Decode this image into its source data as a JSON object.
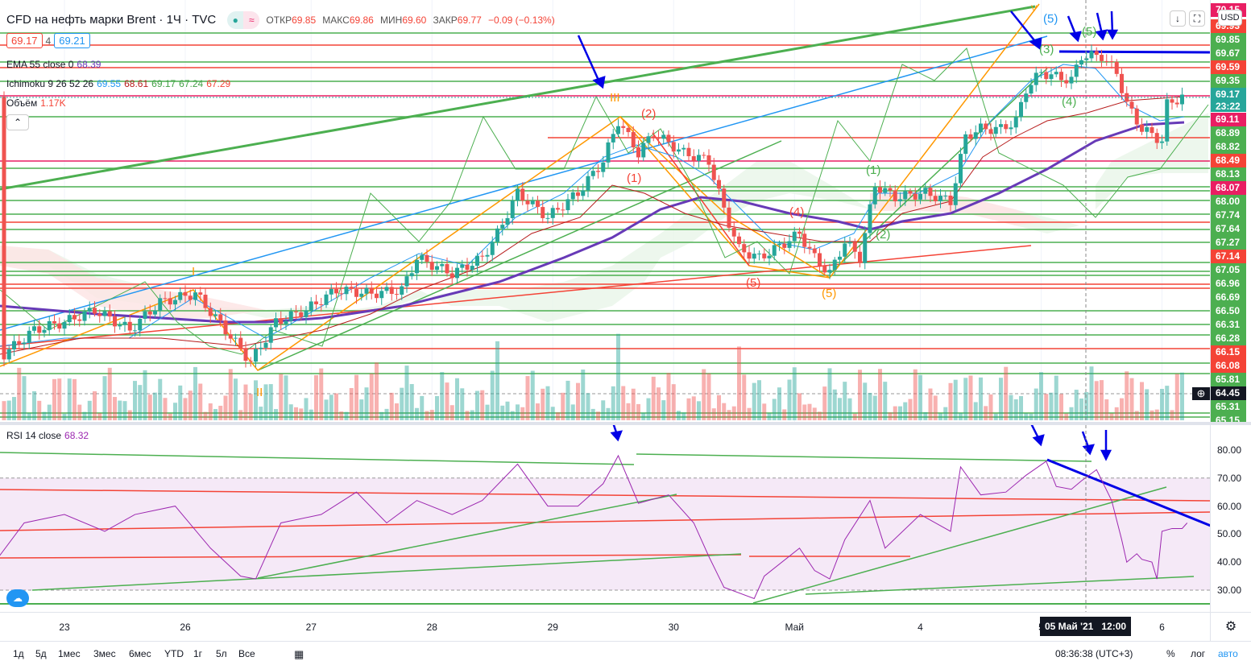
{
  "header": {
    "symbol": "CFD на нефть марки Brent · 1Ч · TVC",
    "open_label": "ОТКР",
    "open": "69.85",
    "high_label": "МАКС",
    "high": "69.86",
    "low_label": "МИН",
    "low": "69.60",
    "close_label": "ЗАКР",
    "close": "69.77",
    "change": "−0.09 (−0.13%)"
  },
  "trade": {
    "sell": "69.17",
    "spread": "4",
    "buy": "69.21"
  },
  "indicators": {
    "ema_label": "EMA 55 close 0",
    "ema_value": "68.39",
    "ichimoku_label": "Ichimoku 9 26 52 26",
    "ichi_values": [
      "69.55",
      "68.61",
      "69.17",
      "67.24",
      "67.29"
    ],
    "volume_label": "Объём",
    "volume_value": "1.17K",
    "rsi_label": "RSI 14 close",
    "rsi_value": "68.32"
  },
  "currency": "USD",
  "price_axis": [
    {
      "v": "70.15",
      "c": "#e91e63"
    },
    {
      "v": "69.93",
      "c": "#f44336"
    },
    {
      "v": "69.85",
      "c": "#4caf50"
    },
    {
      "v": "69.67",
      "c": "#4caf50"
    },
    {
      "v": "69.59",
      "c": "#f44336"
    },
    {
      "v": "69.35",
      "c": "#4caf50"
    },
    {
      "v": "69.17",
      "c": "#26a69a",
      "sub": "23:22"
    },
    {
      "v": "69.11",
      "c": "#e91e63"
    },
    {
      "v": "68.89",
      "c": "#4caf50"
    },
    {
      "v": "68.82",
      "c": "#4caf50"
    },
    {
      "v": "68.49",
      "c": "#f44336"
    },
    {
      "v": "68.13",
      "c": "#4caf50"
    },
    {
      "v": "68.07",
      "c": "#e91e63"
    },
    {
      "v": "68.00",
      "c": "#4caf50"
    },
    {
      "v": "67.74",
      "c": "#4caf50"
    },
    {
      "v": "67.64",
      "c": "#4caf50"
    },
    {
      "v": "67.27",
      "c": "#4caf50"
    },
    {
      "v": "67.14",
      "c": "#f44336"
    },
    {
      "v": "67.05",
      "c": "#4caf50"
    },
    {
      "v": "66.96",
      "c": "#4caf50"
    },
    {
      "v": "66.69",
      "c": "#4caf50"
    },
    {
      "v": "66.50",
      "c": "#4caf50"
    },
    {
      "v": "66.31",
      "c": "#4caf50"
    },
    {
      "v": "66.28",
      "c": "#4caf50"
    },
    {
      "v": "66.15",
      "c": "#f44336"
    },
    {
      "v": "66.08",
      "c": "#f44336"
    },
    {
      "v": "65.81",
      "c": "#4caf50"
    },
    {
      "v": "64.45",
      "c": "#131722"
    },
    {
      "v": "65.31",
      "c": "#4caf50"
    },
    {
      "v": "65.15",
      "c": "#4caf50"
    }
  ],
  "rsi_axis": [
    "80.00",
    "70.00",
    "60.00",
    "50.00",
    "40.00",
    "30.00"
  ],
  "time_axis": [
    {
      "t": "23",
      "h": 0
    },
    {
      "t": "26",
      "h": 24
    },
    {
      "t": "27",
      "h": 49
    },
    {
      "t": "28",
      "h": 73
    },
    {
      "t": "29",
      "h": 97
    },
    {
      "t": "30",
      "h": 121
    },
    {
      "t": "Май",
      "h": 145
    },
    {
      "t": "4",
      "h": 170
    },
    {
      "t": "5",
      "h": 194
    },
    {
      "t": "6",
      "h": 218
    }
  ],
  "crosshair_label": "05 Май '21   12:00",
  "wave_labels": {
    "III": "III",
    "w2": "(2)",
    "w1": "(1)",
    "I": "I",
    "II": "II",
    "r4": "(4)",
    "r5a": "(5)",
    "r5b": "(5)",
    "g1": "(1)",
    "g2": "(2)",
    "g3": "(3)",
    "g4": "(4)",
    "g5": "(5)",
    "b5": "(5)",
    "V": "V"
  },
  "bottom": {
    "ranges": [
      "1д",
      "5д",
      "1мес",
      "3мес",
      "6мес",
      "YTD",
      "1г",
      "5л",
      "Все"
    ],
    "clock": "08:36:38 (UTC+3)",
    "pct": "%",
    "log": "лог",
    "auto": "авто"
  },
  "chart_data": {
    "type": "candlestick",
    "x_unit": "hours since 23 Apr 00:00",
    "price_path": [
      [
        -12,
        66.22
      ],
      [
        -6,
        66.5
      ],
      [
        0,
        66.59
      ],
      [
        6,
        66.73
      ],
      [
        13,
        66.5
      ],
      [
        19,
        66.82
      ],
      [
        26,
        66.92
      ],
      [
        32,
        66.5
      ],
      [
        37,
        66.13
      ],
      [
        42,
        66.59
      ],
      [
        48,
        66.73
      ],
      [
        54,
        66.96
      ],
      [
        61,
        66.92
      ],
      [
        67,
        66.96
      ],
      [
        70,
        67.33
      ],
      [
        77,
        67.15
      ],
      [
        83,
        67.33
      ],
      [
        86,
        67.61
      ],
      [
        90,
        68.08
      ],
      [
        96,
        67.8
      ],
      [
        102,
        68.08
      ],
      [
        107,
        68.45
      ],
      [
        110,
        68.91
      ],
      [
        114,
        68.54
      ],
      [
        117,
        68.77
      ],
      [
        123,
        68.54
      ],
      [
        128,
        68.45
      ],
      [
        131,
        67.89
      ],
      [
        134,
        67.43
      ],
      [
        138,
        67.33
      ],
      [
        141,
        67.43
      ],
      [
        146,
        67.61
      ],
      [
        149,
        67.33
      ],
      [
        152,
        67.15
      ],
      [
        155,
        67.52
      ],
      [
        158,
        67.33
      ],
      [
        161,
        68.17
      ],
      [
        165,
        68.03
      ],
      [
        171,
        68.08
      ],
      [
        176,
        67.98
      ],
      [
        179,
        68.73
      ],
      [
        182,
        68.82
      ],
      [
        186,
        68.82
      ],
      [
        189,
        68.91
      ],
      [
        191,
        69.28
      ],
      [
        194,
        69.47
      ],
      [
        197,
        69.42
      ],
      [
        200,
        69.38
      ],
      [
        202,
        69.66
      ],
      [
        206,
        69.66
      ],
      [
        209,
        69.47
      ],
      [
        211,
        69.1
      ],
      [
        214,
        68.82
      ],
      [
        218,
        68.68
      ],
      [
        219,
        69.1
      ],
      [
        222,
        69.19
      ]
    ],
    "rsi_path": [
      [
        -13,
        42
      ],
      [
        -8,
        54
      ],
      [
        0,
        57
      ],
      [
        8,
        51
      ],
      [
        14,
        57
      ],
      [
        22,
        60
      ],
      [
        29,
        45
      ],
      [
        35,
        35
      ],
      [
        38,
        34
      ],
      [
        43,
        54
      ],
      [
        51,
        57
      ],
      [
        58,
        65
      ],
      [
        64,
        54
      ],
      [
        70,
        62
      ],
      [
        77,
        57
      ],
      [
        83,
        62
      ],
      [
        90,
        75
      ],
      [
        96,
        60
      ],
      [
        102,
        60
      ],
      [
        107,
        68
      ],
      [
        110,
        78
      ],
      [
        114,
        61
      ],
      [
        120,
        64
      ],
      [
        125,
        54
      ],
      [
        128,
        42
      ],
      [
        131,
        31
      ],
      [
        137,
        27
      ],
      [
        139,
        35
      ],
      [
        146,
        45
      ],
      [
        149,
        37
      ],
      [
        152,
        34
      ],
      [
        155,
        48
      ],
      [
        160,
        62
      ],
      [
        163,
        45
      ],
      [
        170,
        57
      ],
      [
        176,
        51
      ],
      [
        178,
        74
      ],
      [
        182,
        64
      ],
      [
        187,
        65
      ],
      [
        191,
        71
      ],
      [
        195,
        76
      ],
      [
        197,
        67
      ],
      [
        200,
        66
      ],
      [
        202,
        69
      ],
      [
        205,
        73
      ],
      [
        208,
        62
      ],
      [
        210,
        48
      ],
      [
        211,
        40
      ],
      [
        213,
        43
      ],
      [
        214,
        41
      ],
      [
        216,
        40
      ],
      [
        217,
        34
      ],
      [
        218,
        51
      ],
      [
        220,
        52
      ],
      [
        222,
        52
      ],
      [
        223,
        54
      ]
    ],
    "rsi_band": [
      30,
      70
    ],
    "rsi_ylim": [
      20,
      85
    ]
  }
}
